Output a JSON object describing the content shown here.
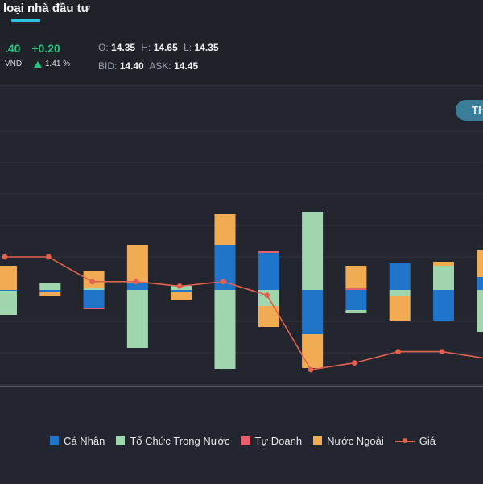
{
  "header": {
    "tab_title": "loại nhà đầu tư"
  },
  "quote": {
    "price": ".40",
    "change": "+0.20",
    "currency": "VND",
    "change_pct": "1.41 %",
    "open_label": "O:",
    "open": "14.35",
    "high_label": "H:",
    "high": "14.65",
    "low_label": "L:",
    "low": "14.35",
    "bid_label": "BID:",
    "bid": "14.40",
    "ask_label": "ASK:",
    "ask": "14.45"
  },
  "toggle": {
    "label": "TH"
  },
  "colors": {
    "ca_nhan": "#1f75c9",
    "to_chuc": "#9fd6ad",
    "tu_doanh": "#e8606d",
    "nuoc_ngoai": "#f1ac53",
    "gia": "#e3624f"
  },
  "chart_data": {
    "type": "bar",
    "stacked": true,
    "series": [
      {
        "name": "Cá Nhân",
        "values": [
          -1,
          -3,
          -22,
          8,
          -2,
          56,
          46,
          -55,
          -25,
          33,
          -38,
          16
        ]
      },
      {
        "name": "Tổ Chức Trong Nước",
        "values": [
          -30,
          8,
          2,
          -72,
          5,
          -98,
          -20,
          97,
          -4,
          -8,
          30,
          -52
        ]
      },
      {
        "name": "Tự Doanh",
        "values": [
          0,
          0,
          -2,
          0,
          0,
          0,
          2,
          0,
          2,
          0,
          0,
          0
        ]
      },
      {
        "name": "Nước Ngoài",
        "values": [
          30,
          -5,
          22,
          48,
          -10,
          38,
          -26,
          -42,
          28,
          -31,
          5,
          34
        ]
      },
      {
        "name": "Giá",
        "values": [
          14.35,
          14.35,
          14.24,
          14.24,
          14.22,
          14.24,
          14.18,
          13.85,
          13.88,
          13.93,
          13.93,
          13.9
        ]
      }
    ],
    "legend_position": "bottom",
    "grid": true
  }
}
